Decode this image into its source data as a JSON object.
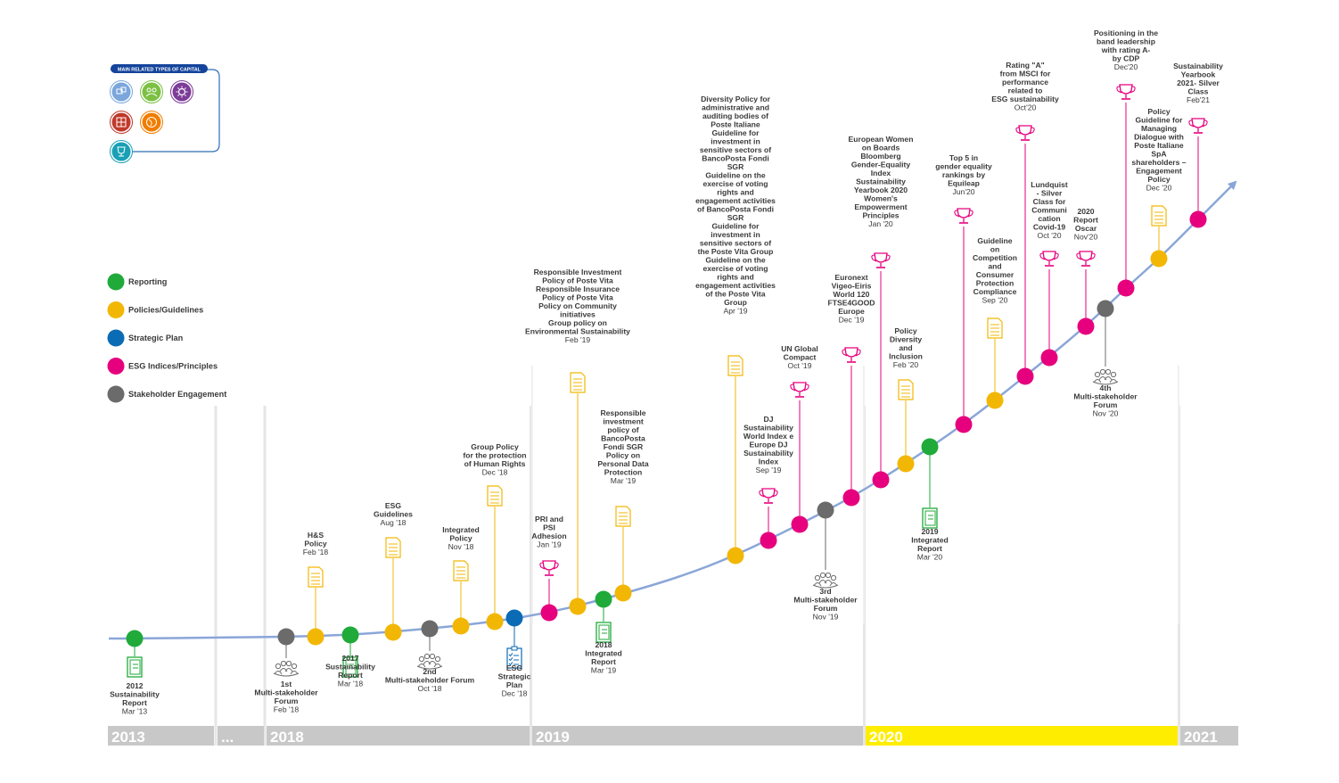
{
  "colors": {
    "reporting": "#1faa3a",
    "policy": "#f2b705",
    "strategic": "#0b6bb5",
    "esg": "#e6007e",
    "stakeholder": "#6b6b6b",
    "line": "#8aa6d8",
    "band": "#c8c8c8",
    "band_highlight": "#ffed00"
  },
  "capital_box": {
    "title": "MAIN RELATED TYPES OF CAPITAL",
    "icons": [
      {
        "name": "relational-capital-icon",
        "color": "#7aa6dc"
      },
      {
        "name": "human-capital-icon",
        "color": "#7bc043"
      },
      {
        "name": "intellectual-capital-icon",
        "color": "#7d3c98"
      },
      {
        "name": "physical-capital-icon",
        "color": "#c0392b"
      },
      {
        "name": "natural-capital-icon",
        "color": "#f07d00"
      },
      {
        "name": "financial-capital-icon",
        "color": "#19a0b6"
      }
    ]
  },
  "legend": [
    {
      "label": "Reporting",
      "type": "reporting"
    },
    {
      "label": "Policies/Guidelines",
      "type": "policy"
    },
    {
      "label": "Strategic Plan",
      "type": "strategic"
    },
    {
      "label": "ESG Indices/Principles",
      "type": "esg"
    },
    {
      "label": "Stakeholder Engagement",
      "type": "stakeholder"
    }
  ],
  "years": [
    {
      "label": "2013",
      "highlight": false
    },
    {
      "label": "...",
      "highlight": false
    },
    {
      "label": "2018",
      "highlight": false
    },
    {
      "label": "2019",
      "highlight": false
    },
    {
      "label": "2020",
      "highlight": true
    },
    {
      "label": "2021",
      "highlight": false
    }
  ],
  "events": [
    {
      "type": "reporting",
      "lines": [
        "2012",
        "Sustainability",
        "Report"
      ],
      "date": "Mar '13"
    },
    {
      "type": "stakeholder",
      "lines": [
        "1st",
        "Multi-stakeholder",
        "Forum"
      ],
      "date": "Feb '18"
    },
    {
      "type": "policy",
      "lines": [
        "H&S",
        "Policy"
      ],
      "date": "Feb '18"
    },
    {
      "type": "reporting",
      "lines": [
        "2017",
        "Sustainability",
        "Report"
      ],
      "date": "Mar '18"
    },
    {
      "type": "policy",
      "lines": [
        "ESG",
        "Guidelines"
      ],
      "date": "Aug '18"
    },
    {
      "type": "stakeholder",
      "lines": [
        "2nd",
        "Multi-stakeholder Forum"
      ],
      "date": "Oct '18"
    },
    {
      "type": "policy",
      "lines": [
        "Integrated",
        "Policy"
      ],
      "date": "Nov '18"
    },
    {
      "type": "policy",
      "lines": [
        "Group Policy",
        "for the protection",
        "of Human Rights"
      ],
      "date": "Dec '18"
    },
    {
      "type": "strategic",
      "lines": [
        "ESG",
        "Strategic",
        "Plan"
      ],
      "date": "Dec '18"
    },
    {
      "type": "esg",
      "lines": [
        "PRI and",
        "PSI",
        "Adhesion"
      ],
      "date": "Jan '19"
    },
    {
      "type": "policy",
      "lines": [
        "Responsible Investment",
        "Policy of Poste Vita",
        "Responsible Insurance",
        "Policy of Poste Vita",
        "Policy on Community",
        "initiatives",
        "Group policy on",
        "Environmental Sustainability"
      ],
      "date": "Feb '19"
    },
    {
      "type": "reporting",
      "lines": [
        "2018",
        "Integrated",
        "Report"
      ],
      "date": "Mar '19"
    },
    {
      "type": "policy",
      "lines": [
        "Responsible",
        "investment",
        "policy of",
        "BancoPosta",
        "Fondi SGR",
        "Policy on",
        "Personal Data",
        "Protection"
      ],
      "date": "Mar '19"
    },
    {
      "type": "policy",
      "lines": [
        "Diversity Policy for",
        "administrative and",
        "auditing bodies of",
        "Poste Italiane",
        "Guideline for",
        "investment in",
        "sensitive sectors of",
        "BancoPosta Fondi",
        "SGR",
        "Guideline on the",
        "exercise of voting",
        "rights and",
        "engagement activities",
        "of BancoPosta Fondi",
        "SGR",
        "Guideline for",
        "investment in",
        "sensitive sectors of",
        "the Poste Vita Group",
        "Guideline on the",
        "exercise of voting",
        "rights and",
        "engagement activities",
        "of the Poste Vita",
        "Group"
      ],
      "date": "Apr '19"
    },
    {
      "type": "esg",
      "lines": [
        "DJ",
        "Sustainability",
        "World Index e",
        "Europe DJ",
        "Sustainability",
        "Index"
      ],
      "date": "Sep '19"
    },
    {
      "type": "esg",
      "lines": [
        "UN Global",
        "Compact"
      ],
      "date": "Oct '19"
    },
    {
      "type": "stakeholder",
      "lines": [
        "3rd",
        "Multi-stakeholder",
        "Forum"
      ],
      "date": "Nov '19"
    },
    {
      "type": "esg",
      "lines": [
        "Euronext",
        "Vigeo-Eiris",
        "World 120",
        "FTSE4GOOD",
        "Europe"
      ],
      "date": "Dec '19"
    },
    {
      "type": "esg",
      "lines": [
        "European Women",
        "on Boards",
        "Bloomberg",
        "Gender-Equality",
        "Index",
        "Sustainability",
        "Yearbook 2020",
        "Women's",
        "Empowerment",
        "Principles"
      ],
      "date": "Jan '20"
    },
    {
      "type": "policy",
      "lines": [
        "Policy",
        "Diversity",
        "and",
        "Inclusion"
      ],
      "date": "Feb '20"
    },
    {
      "type": "reporting",
      "lines": [
        "2019",
        "Integrated",
        "Report"
      ],
      "date": "Mar '20"
    },
    {
      "type": "esg",
      "lines": [
        "Top 5 in",
        "gender equality",
        "rankings by",
        "Equileap"
      ],
      "date": "Jun'20"
    },
    {
      "type": "policy",
      "lines": [
        "Guideline",
        "on",
        "Competition",
        "and",
        "Consumer",
        "Protection",
        "Compliance"
      ],
      "date": "Sep '20"
    },
    {
      "type": "esg",
      "lines": [
        "Rating \"A\"",
        "from MSCI for",
        "performance",
        "related to",
        "ESG sustainability"
      ],
      "date": "Oct'20"
    },
    {
      "type": "esg",
      "lines": [
        "Lundquist",
        "- Silver",
        "Class for",
        "Communi",
        "cation",
        "Covid-19"
      ],
      "date": "Oct '20"
    },
    {
      "type": "esg",
      "lines": [
        "2020",
        "Report",
        "Oscar"
      ],
      "date": "Nov'20"
    },
    {
      "type": "stakeholder",
      "lines": [
        "4th",
        "Multi-stakeholder",
        "Forum"
      ],
      "date": "Nov '20"
    },
    {
      "type": "esg",
      "lines": [
        "Positioning in the",
        "band leadership",
        "with rating A-",
        "by CDP"
      ],
      "date": "Dec'20"
    },
    {
      "type": "policy",
      "lines": [
        "Policy",
        "Guideline for",
        "Managing",
        "Dialogue with",
        "Poste Italiane",
        "SpA",
        "shareholders –",
        "Engagement",
        "Policy"
      ],
      "date": "Dec '20"
    },
    {
      "type": "esg",
      "lines": [
        "Sustainability",
        "Yearbook",
        "2021- Silver",
        "Class"
      ],
      "date": "Feb'21"
    }
  ]
}
